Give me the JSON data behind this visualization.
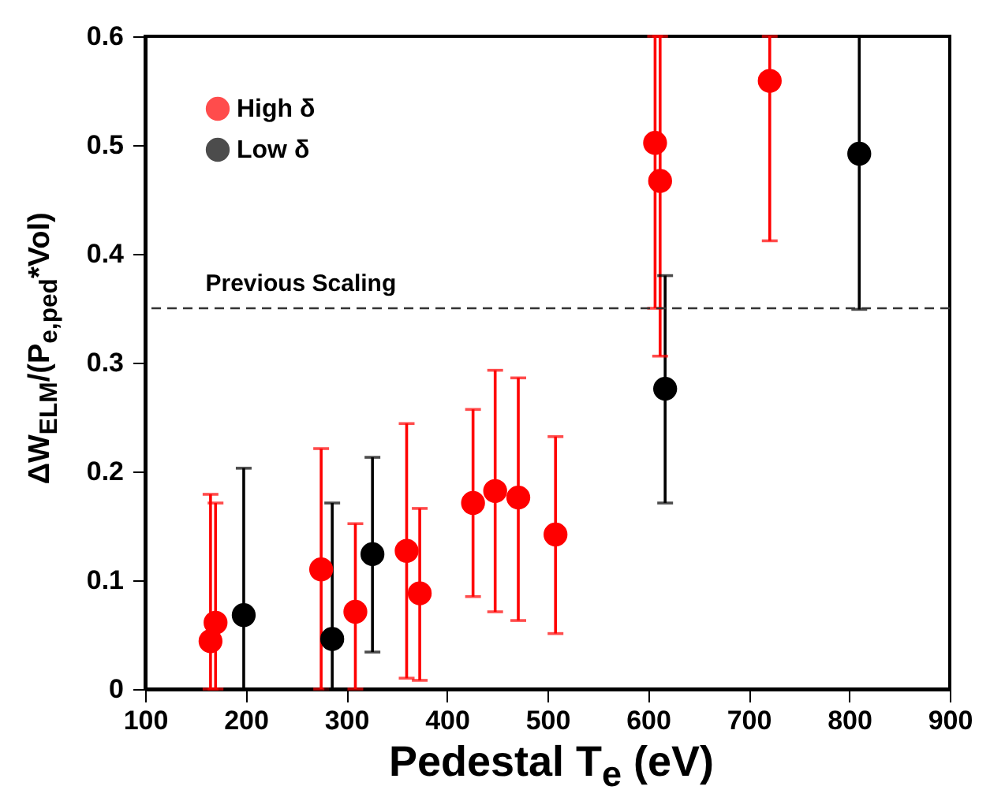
{
  "chart_data": {
    "type": "scatter",
    "xlabel": "Pedestal T$_{e}$ (eV)",
    "ylabel": "ΔW$_{ELM}$/(P$_{e,ped}$*Vol)",
    "xlim": [
      100,
      900
    ],
    "xticks": [
      100,
      200,
      300,
      400,
      500,
      600,
      700,
      800,
      900
    ],
    "ylim": [
      0,
      0.6
    ],
    "yticks": [
      {
        "value": 0,
        "label": "0"
      },
      0.1,
      0.2,
      0.3,
      0.4,
      0.5,
      0.6
    ],
    "marker": "circle",
    "legend": "top left",
    "grid": false,
    "ref_lines": [
      {
        "axis": "y",
        "value": 0.35,
        "label": "Previous Scaling",
        "line_style": "dashed",
        "color": "#333333"
      }
    ],
    "series": [
      {
        "name": "High δ",
        "color": "#ff0000",
        "x": [
          165,
          170,
          275,
          309,
          360,
          373,
          426,
          448,
          471,
          508,
          607,
          612,
          721
        ],
        "values": [
          0.044,
          0.061,
          0.11,
          0.071,
          0.127,
          0.088,
          0.171,
          0.182,
          0.176,
          0.142,
          0.502,
          0.467,
          0.559
        ],
        "errors": [
          [
            0,
            0.179
          ],
          [
            0,
            0.171
          ],
          [
            0,
            0.221
          ],
          [
            0,
            0.152
          ],
          [
            0.01,
            0.244
          ],
          [
            0.008,
            0.166
          ],
          [
            0.085,
            0.257
          ],
          [
            0.071,
            0.293
          ],
          [
            0.063,
            0.286
          ],
          [
            0.051,
            0.232
          ],
          [
            0.35,
            0.6
          ],
          [
            0.306,
            0.6
          ],
          [
            0.412,
            0.6
          ]
        ]
      },
      {
        "name": "Low δ",
        "color": "#000000",
        "x": [
          198,
          286,
          326,
          617,
          810
        ],
        "values": [
          0.068,
          0.046,
          0.124,
          0.276,
          0.492
        ],
        "errors": [
          [
            0,
            0.203
          ],
          [
            0,
            0.171
          ],
          [
            0.034,
            0.213
          ],
          [
            0.171,
            0.38
          ],
          [
            0.349,
            0.6
          ]
        ]
      }
    ]
  }
}
